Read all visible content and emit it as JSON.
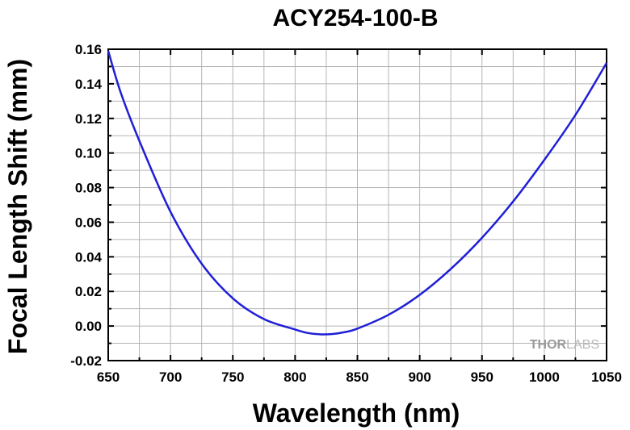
{
  "chart_data": {
    "type": "line",
    "title": "ACY254-100-B",
    "xlabel": "Wavelength (nm)",
    "ylabel": "Focal Length Shift (mm)",
    "xlim": [
      650,
      1050
    ],
    "ylim": [
      -0.02,
      0.16
    ],
    "xticks": [
      650,
      700,
      750,
      800,
      850,
      900,
      950,
      1000,
      1050
    ],
    "yticks": [
      -0.02,
      0.0,
      0.02,
      0.04,
      0.06,
      0.08,
      0.1,
      0.12,
      0.14,
      0.16
    ],
    "ytick_labels": [
      "-0.02",
      "0.00",
      "0.02",
      "0.04",
      "0.06",
      "0.08",
      "0.10",
      "0.12",
      "0.14",
      "0.16"
    ],
    "grid": true,
    "series": [
      {
        "color": "#1f1fd6",
        "x": [
          650,
          660,
          675,
          700,
          725,
          750,
          775,
          800,
          810,
          820,
          830,
          840,
          850,
          875,
          900,
          925,
          950,
          975,
          1000,
          1025,
          1050
        ],
        "y": [
          0.159,
          0.135,
          0.107,
          0.066,
          0.036,
          0.016,
          0.004,
          -0.002,
          -0.004,
          -0.0048,
          -0.0046,
          -0.0035,
          -0.0015,
          0.0065,
          0.018,
          0.033,
          0.051,
          0.072,
          0.096,
          0.122,
          0.152
        ]
      }
    ]
  },
  "watermark": {
    "part1": "THOR",
    "part2": "LABS"
  }
}
